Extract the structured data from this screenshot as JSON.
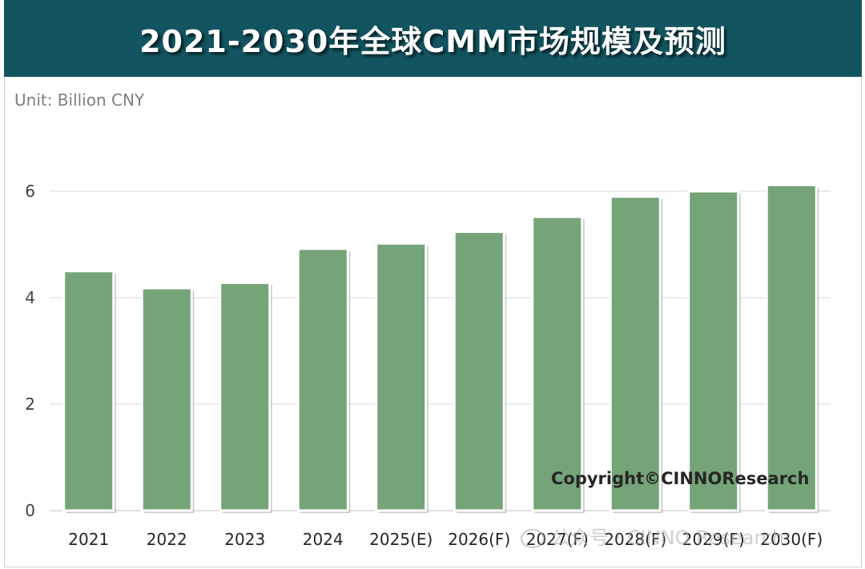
{
  "header": {
    "title": "2021-2030年全球CMM市场规模及预测"
  },
  "unit_label": "Unit: Billion CNY",
  "copyright": "Copyright©CINNOResearch",
  "watermark": "公众号 · CINNO Research",
  "colors": {
    "header_bg": "#12545f",
    "bar_fill": "#74a478",
    "bar_border": "#ffffff",
    "grid": "#d9d9d9"
  },
  "chart_data": {
    "type": "bar",
    "title": "2021-2030年全球CMM市场规模及预测",
    "ylabel": "Unit: Billion CNY",
    "xlabel": "",
    "categories": [
      "2021",
      "2022",
      "2023",
      "2024",
      "2025(E)",
      "2026(F)",
      "2027(F)",
      "2028(F)",
      "2029(F)",
      "2030(F)"
    ],
    "values": [
      4.5,
      4.18,
      4.28,
      4.92,
      5.02,
      5.24,
      5.52,
      5.9,
      6.0,
      6.12
    ],
    "ylim": [
      0,
      7
    ],
    "yticks": [
      0,
      2,
      4,
      6
    ],
    "grid": true,
    "legend": "none"
  }
}
